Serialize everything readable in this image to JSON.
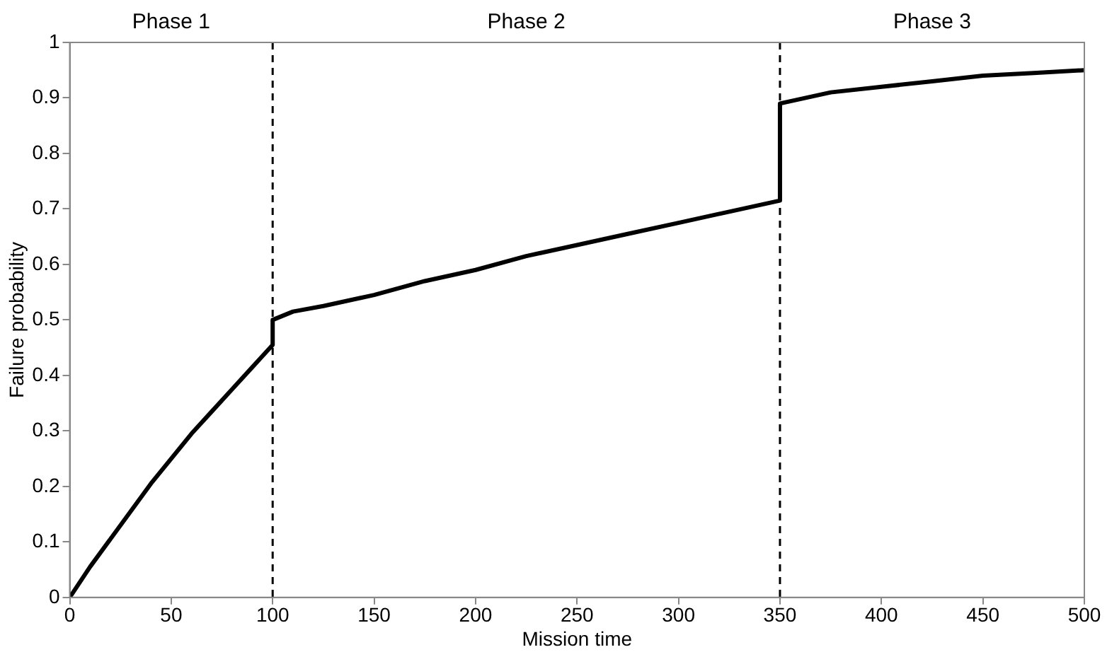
{
  "chart_data": {
    "type": "line",
    "xlabel": "Mission time",
    "ylabel": "Failure probability",
    "annotations": [
      "Phase 1",
      "Phase 2",
      "Phase 3"
    ],
    "series": [
      {
        "color": "#000000",
        "x": [
          0,
          10,
          20,
          30,
          40,
          50,
          60,
          70,
          80,
          90,
          100,
          100,
          110,
          125,
          150,
          175,
          200,
          225,
          250,
          275,
          300,
          325,
          350,
          350,
          375,
          400,
          425,
          450,
          475,
          500
        ],
        "values": [
          0,
          0.055,
          0.105,
          0.155,
          0.205,
          0.25,
          0.295,
          0.335,
          0.375,
          0.415,
          0.455,
          0.5,
          0.515,
          0.525,
          0.545,
          0.57,
          0.59,
          0.615,
          0.635,
          0.655,
          0.675,
          0.695,
          0.715,
          0.89,
          0.91,
          0.92,
          0.93,
          0.94,
          0.945,
          0.95
        ]
      }
    ],
    "xlim": [
      0,
      500
    ],
    "xticks": [
      0,
      50,
      100,
      150,
      200,
      250,
      300,
      350,
      400,
      450,
      500
    ],
    "ylim": [
      0,
      1
    ],
    "yticks": [
      0,
      0.1,
      0.2,
      0.3,
      0.4,
      0.5,
      0.6,
      0.7,
      0.8,
      0.9,
      1
    ],
    "ref_lines": [
      {
        "axis": "x",
        "value": 100,
        "color": "#000000",
        "line_style": "dashed"
      },
      {
        "axis": "x",
        "value": 350,
        "color": "#000000",
        "line_style": "dashed"
      }
    ],
    "grid": false,
    "legend": false,
    "marker": "none",
    "line_style": "solid"
  }
}
